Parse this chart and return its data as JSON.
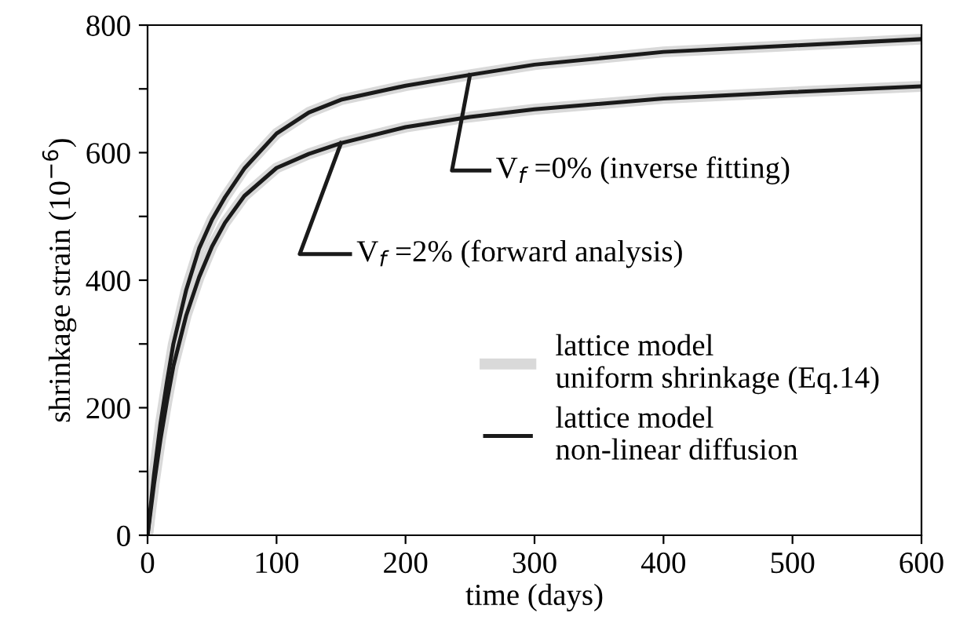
{
  "chart_data": {
    "type": "line",
    "xlabel": "time (days)",
    "ylabel": "shrinkage strain (10$^{−6}$)",
    "x": [
      0,
      5,
      10,
      15,
      20,
      30,
      40,
      50,
      60,
      75,
      100,
      125,
      150,
      200,
      250,
      300,
      400,
      500,
      600
    ],
    "series": [
      {
        "name": "lattice model\nuniform shrinkage (Eq.14)",
        "color": "#d9d9d9",
        "values": [
          0,
          95,
          175,
          240,
          300,
          385,
          450,
          495,
          530,
          575,
          630,
          663,
          683,
          705,
          722,
          738,
          758,
          768,
          778
        ]
      },
      {
        "color": "#d9d9d9",
        "values": [
          0,
          80,
          150,
          210,
          265,
          345,
          405,
          453,
          490,
          532,
          576,
          598,
          615,
          640,
          656,
          668,
          685,
          695,
          704
        ]
      },
      {
        "name": "lattice model\nnon-linear diffusion",
        "color": "#1a1a1a",
        "values": [
          0,
          95,
          175,
          240,
          300,
          385,
          450,
          495,
          530,
          575,
          630,
          663,
          683,
          705,
          722,
          738,
          758,
          768,
          778
        ]
      },
      {
        "color": "#1a1a1a",
        "values": [
          0,
          80,
          150,
          210,
          265,
          345,
          405,
          453,
          490,
          532,
          576,
          598,
          615,
          640,
          656,
          668,
          685,
          695,
          704
        ]
      }
    ],
    "annotations": [
      {
        "text": "V$_{f}$ =0% (inverse fitting)",
        "x": 250,
        "y": 722
      },
      {
        "text": "V$_{f}$ =2% (forward analysis)",
        "x": 150,
        "y": 615
      }
    ],
    "xlim": [
      0,
      600
    ],
    "xticks": [
      0,
      100,
      200,
      300,
      400,
      500,
      600
    ],
    "ylim": [
      0,
      800
    ],
    "yticks": [
      0,
      {
        "value": 100,
        "label": null
      },
      200,
      {
        "value": 300,
        "label": null
      },
      400,
      {
        "value": 500,
        "label": null
      },
      600,
      {
        "value": 700,
        "label": null
      },
      800
    ],
    "legend": "bottom right",
    "grid": false,
    "marker": "none",
    "line_style": "solid"
  }
}
